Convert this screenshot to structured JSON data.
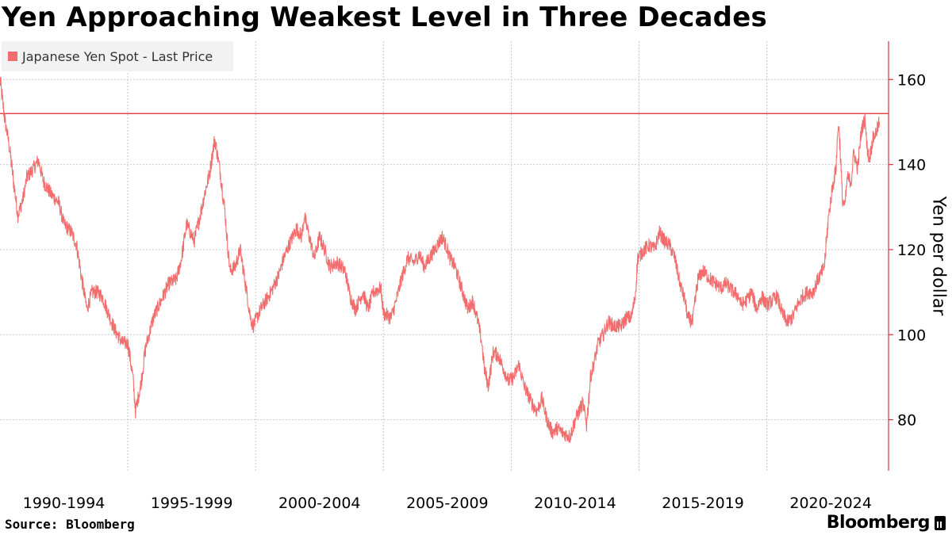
{
  "colors": {
    "series": "#f26d6d",
    "grid": "#c8c8c8",
    "reference_line": "#e2232f",
    "axis": "#d9343f"
  },
  "chart_data": {
    "type": "line",
    "title": "Yen Approaching Weakest Level in Three Decades",
    "ylabel": "Yen per dollar",
    "xlabel": "",
    "legend": {
      "label": "Japanese Yen Spot - Last Price",
      "placement": "top-left"
    },
    "x_range": [
      1990,
      2024.45
    ],
    "ylim": [
      68,
      169
    ],
    "y_ticks": [
      80,
      100,
      120,
      140,
      160
    ],
    "x_dividers": [
      1995,
      2000,
      2005,
      2010,
      2015,
      2020
    ],
    "x_tick_labels": [
      {
        "label": "1990-1994",
        "center": 1992.5
      },
      {
        "label": "1995-1999",
        "center": 1997.5
      },
      {
        "label": "2000-2004",
        "center": 2002.5
      },
      {
        "label": "2005-2009",
        "center": 2007.5
      },
      {
        "label": "2010-2014",
        "center": 2012.5
      },
      {
        "label": "2015-2019",
        "center": 2017.5
      },
      {
        "label": "2020-2024",
        "center": 2022.5
      }
    ],
    "reference_line": {
      "y": 152,
      "label": ""
    },
    "series": [
      {
        "name": "Japanese Yen Spot - Last Price",
        "x": [
          1990.0,
          1990.2,
          1990.35,
          1990.55,
          1990.7,
          1990.9,
          1991.05,
          1991.3,
          1991.5,
          1991.7,
          1992.0,
          1992.3,
          1992.5,
          1992.8,
          1993.0,
          1993.2,
          1993.4,
          1993.6,
          1993.8,
          1994.0,
          1994.3,
          1994.5,
          1994.8,
          1995.0,
          1995.2,
          1995.3,
          1995.5,
          1995.7,
          1996.0,
          1996.3,
          1996.6,
          1996.9,
          1997.1,
          1997.3,
          1997.6,
          1997.9,
          1998.0,
          1998.2,
          1998.4,
          1998.6,
          1998.8,
          1998.9,
          1999.0,
          1999.2,
          1999.4,
          1999.6,
          1999.8,
          1999.9,
          2000.2,
          2000.4,
          2000.6,
          2000.9,
          2001.1,
          2001.3,
          2001.6,
          2001.8,
          2001.9,
          2002.1,
          2002.3,
          2002.5,
          2002.7,
          2002.9,
          2003.2,
          2003.5,
          2003.7,
          2003.9,
          2004.2,
          2004.4,
          2004.6,
          2004.9,
          2005.0,
          2005.3,
          2005.5,
          2005.7,
          2005.95,
          2006.2,
          2006.4,
          2006.6,
          2006.8,
          2007.0,
          2007.3,
          2007.45,
          2007.6,
          2007.8,
          2007.9,
          2008.1,
          2008.3,
          2008.5,
          2008.7,
          2008.85,
          2008.95,
          2009.1,
          2009.3,
          2009.5,
          2009.7,
          2009.9,
          2010.1,
          2010.3,
          2010.5,
          2010.8,
          2011.0,
          2011.2,
          2011.4,
          2011.6,
          2011.8,
          2012.0,
          2012.3,
          2012.5,
          2012.8,
          2012.95,
          2013.1,
          2013.3,
          2013.4,
          2013.6,
          2013.8,
          2014.0,
          2014.3,
          2014.5,
          2014.7,
          2014.85,
          2014.95,
          2015.2,
          2015.4,
          2015.6,
          2015.8,
          2016.0,
          2016.2,
          2016.4,
          2016.6,
          2016.8,
          2016.9,
          2017.1,
          2017.3,
          2017.5,
          2017.8,
          2018.0,
          2018.2,
          2018.4,
          2018.7,
          2018.9,
          2019.0,
          2019.2,
          2019.4,
          2019.6,
          2019.8,
          2020.0,
          2020.2,
          2020.4,
          2020.6,
          2020.8,
          2021.0,
          2021.2,
          2021.4,
          2021.6,
          2021.8,
          2022.0,
          2022.1,
          2022.25,
          2022.4,
          2022.55,
          2022.7,
          2022.8,
          2022.85,
          2022.95,
          2023.05,
          2023.15,
          2023.3,
          2023.4,
          2023.55,
          2023.7,
          2023.85,
          2023.9,
          2024.0,
          2024.15,
          2024.3,
          2024.4
        ],
        "values": [
          160,
          150,
          145,
          135,
          128,
          132,
          137,
          139,
          141,
          136,
          133,
          131,
          126,
          124,
          121,
          113,
          106,
          110,
          110,
          109,
          104,
          101,
          98,
          98,
          90,
          82,
          88,
          97,
          104,
          108,
          112,
          113,
          118,
          126,
          122,
          130,
          133,
          138,
          146,
          139,
          129,
          121,
          115,
          116,
          120,
          112,
          104,
          102,
          106,
          108,
          110,
          114,
          118,
          121,
          125,
          123,
          128,
          123,
          118,
          123,
          120,
          116,
          117,
          115,
          109,
          106,
          110,
          106,
          110,
          111,
          105,
          104,
          108,
          113,
          118,
          117,
          119,
          116,
          118,
          120,
          123,
          121,
          118,
          116,
          114,
          110,
          106,
          108,
          103,
          98,
          92,
          88,
          96,
          95,
          92,
          89,
          90,
          93,
          88,
          84,
          82,
          85,
          80,
          77,
          78,
          77,
          76,
          80,
          84,
          79,
          90,
          95,
          98,
          100,
          103,
          102,
          102,
          104,
          104,
          109,
          118,
          120,
          121,
          120,
          124,
          122,
          121,
          118,
          112,
          108,
          104,
          103,
          113,
          115,
          113,
          112,
          111,
          112,
          110,
          109,
          107,
          108,
          110,
          106,
          109,
          107,
          108,
          109,
          105,
          103,
          104,
          107,
          109,
          110,
          110,
          113,
          114,
          116,
          127,
          134,
          139,
          150,
          146,
          132,
          130,
          137,
          136,
          143,
          139,
          148,
          151,
          145,
          141,
          146,
          148,
          150
        ]
      }
    ]
  },
  "source": "Source: Bloomberg",
  "brand": "Bloomberg"
}
